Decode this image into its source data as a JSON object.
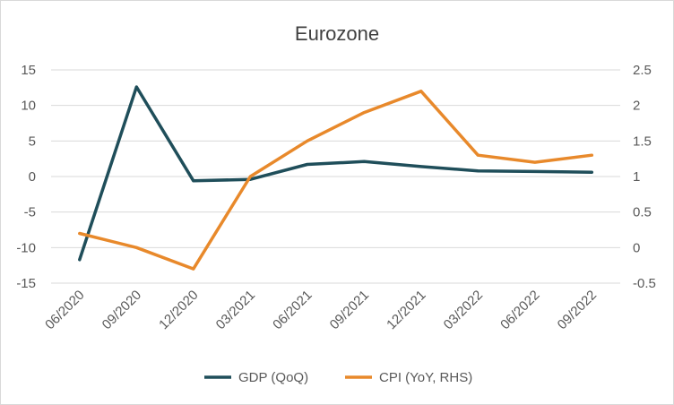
{
  "chart_data": {
    "type": "line",
    "title": "Eurozone",
    "categories": [
      "06/2020",
      "09/2020",
      "12/2020",
      "03/2021",
      "06/2021",
      "09/2021",
      "12/2021",
      "03/2022",
      "06/2022",
      "09/2022"
    ],
    "y_left": {
      "min": -15,
      "max": 15,
      "ticks": [
        "15",
        "10",
        "5",
        "0",
        "-5",
        "-10",
        "-15"
      ],
      "tick_values": [
        15,
        10,
        5,
        0,
        -5,
        -10,
        -15
      ]
    },
    "y_right": {
      "min": -0.5,
      "max": 2.5,
      "ticks": [
        "2.5",
        "2",
        "1.5",
        "1",
        "0.5",
        "0",
        "-0.5"
      ],
      "tick_values": [
        2.5,
        2,
        1.5,
        1,
        0.5,
        0,
        -0.5
      ]
    },
    "grid": true,
    "legend_position": "bottom",
    "series": [
      {
        "name": "GDP (QoQ)",
        "axis": "left",
        "color": "#1f4e5a",
        "values": [
          -11.7,
          12.6,
          -0.6,
          -0.4,
          1.7,
          2.1,
          1.4,
          0.8,
          0.7,
          0.6
        ]
      },
      {
        "name": "CPI (YoY, RHS)",
        "axis": "right",
        "color": "#e8892b",
        "values": [
          0.2,
          0.0,
          -0.3,
          1.0,
          1.5,
          1.9,
          2.2,
          1.3,
          1.2,
          1.3
        ]
      }
    ]
  }
}
